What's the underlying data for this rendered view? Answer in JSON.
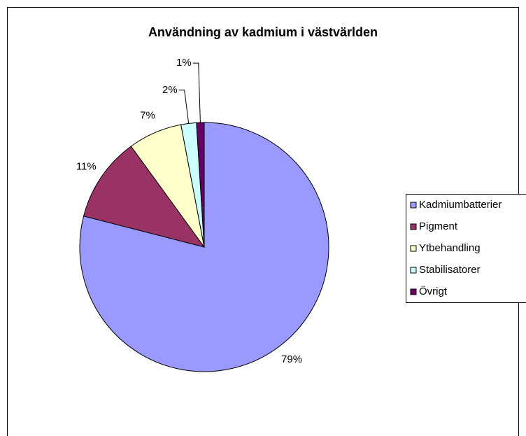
{
  "chart_data": {
    "type": "pie",
    "title": "Användning av kadmium i västvärlden",
    "categories": [
      "Kadmiumbatterier",
      "Pigment",
      "Ytbehandling",
      "Stabilisatorer",
      "Övrigt"
    ],
    "values": [
      79,
      11,
      7,
      2,
      1
    ],
    "value_labels": [
      "79%",
      "11%",
      "7%",
      "2%",
      "1%"
    ],
    "colors": [
      "#9999ff",
      "#993366",
      "#ffffcc",
      "#ccffff",
      "#660066"
    ],
    "legend": "right"
  }
}
